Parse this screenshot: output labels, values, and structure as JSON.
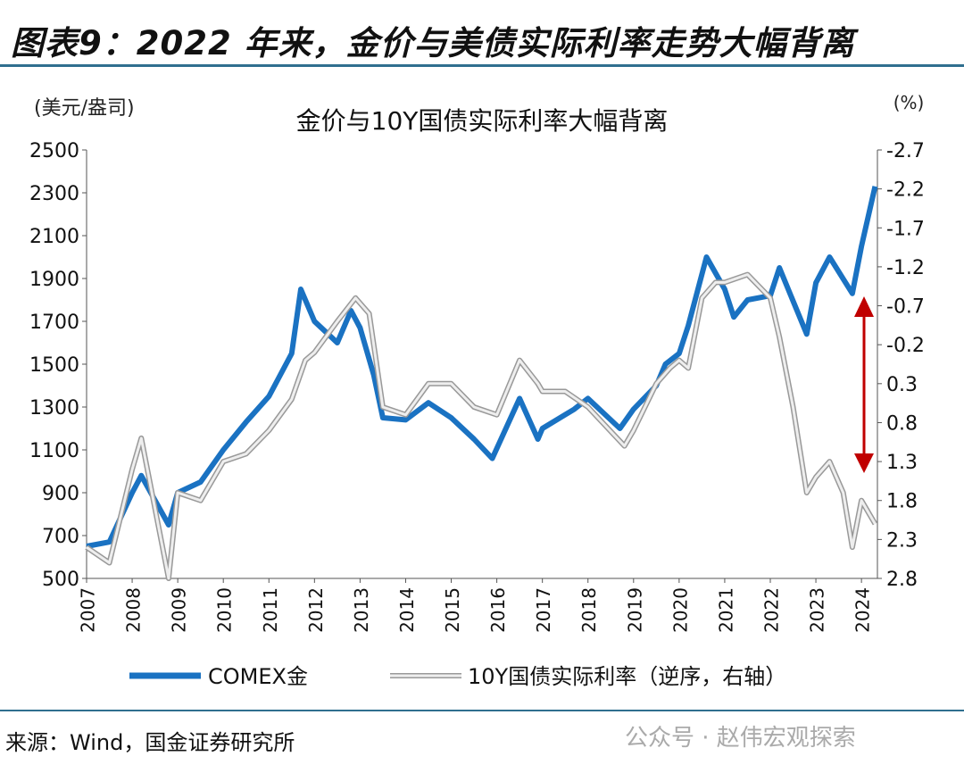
{
  "title": "图表9：2022 年来，金价与美债实际利率走势大幅背离",
  "source": "来源：Wind，国金证券研究所",
  "watermark": "公众号 · 赵伟宏观探索",
  "chart_data": {
    "type": "line",
    "title": "金价与10Y国债实际利率大幅背离",
    "ylabel": "(美元/盎司)",
    "y2label": "(%)",
    "ylim": [
      500,
      2500
    ],
    "y2lim": [
      -2.7,
      2.8
    ],
    "y2_inverted": true,
    "xlim": [
      2007,
      2024.35
    ],
    "yticks": [
      "2500",
      "2300",
      "2100",
      "1900",
      "1700",
      "1500",
      "1300",
      "1100",
      "900",
      "700",
      "500"
    ],
    "y2ticks": [
      "-2.7",
      "-2.2",
      "-1.7",
      "-1.2",
      "-0.7",
      "-0.2",
      "0.3",
      "0.8",
      "1.3",
      "1.8",
      "2.3",
      "2.8"
    ],
    "xticks": [
      "2007",
      "2008",
      "2009",
      "2010",
      "2011",
      "2012",
      "2013",
      "2014",
      "2015",
      "2016",
      "2017",
      "2018",
      "2019",
      "2020",
      "2021",
      "2022",
      "2023",
      "2024"
    ],
    "grid": false,
    "legend_position": "bottom",
    "series": [
      {
        "name": "COMEX金",
        "axis": "left",
        "color": "#1a72c2",
        "x": [
          2007,
          2007.5,
          2008,
          2008.2,
          2008.8,
          2009,
          2009.5,
          2010,
          2010.5,
          2011,
          2011.5,
          2011.7,
          2012,
          2012.5,
          2012.8,
          2013,
          2013.3,
          2013.5,
          2014,
          2014.5,
          2015,
          2015.5,
          2015.9,
          2016.5,
          2016.9,
          2017,
          2017.7,
          2018,
          2018.7,
          2019,
          2019.5,
          2019.7,
          2020,
          2020.2,
          2020.6,
          2021,
          2021.2,
          2021.5,
          2022,
          2022.2,
          2022.8,
          2023,
          2023.3,
          2023.8,
          2024,
          2024.3
        ],
        "values": [
          650,
          670,
          900,
          980,
          750,
          900,
          950,
          1100,
          1230,
          1350,
          1550,
          1850,
          1700,
          1600,
          1750,
          1670,
          1450,
          1250,
          1240,
          1320,
          1250,
          1150,
          1060,
          1340,
          1150,
          1200,
          1290,
          1340,
          1200,
          1290,
          1400,
          1500,
          1550,
          1680,
          2000,
          1850,
          1720,
          1800,
          1820,
          1950,
          1640,
          1880,
          2000,
          1830,
          2050,
          2330
        ]
      },
      {
        "name": "10Y国债实际利率（逆序，右轴）",
        "axis": "right",
        "color": "#b0b0b0",
        "x": [
          2007,
          2007.5,
          2008,
          2008.2,
          2008.8,
          2009,
          2009.5,
          2010,
          2010.5,
          2011,
          2011.5,
          2011.8,
          2012,
          2012.5,
          2012.9,
          2013.2,
          2013.5,
          2014,
          2014.5,
          2015,
          2015.5,
          2016,
          2016.5,
          2016.9,
          2017,
          2017.5,
          2018,
          2018.8,
          2019,
          2019.5,
          2019.8,
          2020,
          2020.2,
          2020.5,
          2020.8,
          2021,
          2021.5,
          2022,
          2022.2,
          2022.5,
          2022.8,
          2023,
          2023.3,
          2023.6,
          2023.8,
          2024,
          2024.3
        ],
        "values": [
          2.4,
          2.6,
          1.4,
          1.0,
          2.8,
          1.7,
          1.8,
          1.3,
          1.2,
          0.9,
          0.5,
          0.0,
          -0.1,
          -0.5,
          -0.8,
          -0.6,
          0.6,
          0.7,
          0.3,
          0.3,
          0.6,
          0.7,
          0.0,
          0.3,
          0.4,
          0.4,
          0.6,
          1.1,
          0.9,
          0.3,
          0.1,
          0.0,
          0.1,
          -0.8,
          -1.0,
          -1.0,
          -1.1,
          -0.8,
          -0.3,
          0.6,
          1.7,
          1.5,
          1.3,
          1.7,
          2.4,
          1.8,
          2.1
        ]
      }
    ],
    "annotations": [
      {
        "type": "double-arrow",
        "color": "#c00000"
      }
    ]
  }
}
